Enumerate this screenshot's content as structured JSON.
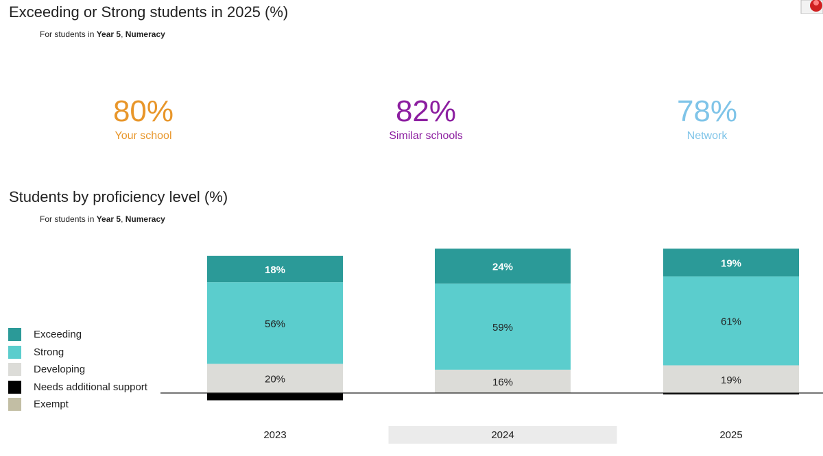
{
  "kpi_section": {
    "title": "Exceeding or Strong students in 2025 (%)",
    "subtitle_prefix": "For students in ",
    "subtitle_year": "Year 5",
    "subtitle_sep": ", ",
    "subtitle_domain": "Numeracy",
    "kpis": [
      {
        "value": "80%",
        "label": "Your school",
        "color": "#e8962a"
      },
      {
        "value": "82%",
        "label": "Similar schools",
        "color": "#8c1ea0"
      },
      {
        "value": "78%",
        "label": "Network",
        "color": "#7fc4e8"
      }
    ]
  },
  "chart_section": {
    "title": "Students by proficiency level (%)",
    "subtitle_prefix": "For students in ",
    "subtitle_year": "Year 5",
    "subtitle_sep": ", ",
    "subtitle_domain": "Numeracy"
  },
  "legend": [
    {
      "label": "Exceeding",
      "color": "#2b9a98"
    },
    {
      "label": "Strong",
      "color": "#5bcdcd"
    },
    {
      "label": "Developing",
      "color": "#dcdcd8"
    },
    {
      "label": "Needs additional support",
      "color": "#000000"
    },
    {
      "label": "Exempt",
      "color": "#c2bea4"
    }
  ],
  "chart_data": {
    "type": "bar",
    "stacked": true,
    "categories": [
      "2023",
      "2024",
      "2025"
    ],
    "highlighted_category": "2024",
    "series": [
      {
        "name": "Exceeding",
        "values": [
          18,
          24,
          19
        ],
        "labels": [
          "18%",
          "24%",
          "19%"
        ],
        "color": "#2b9a98",
        "label_color": "#ffffff"
      },
      {
        "name": "Strong",
        "values": [
          56,
          59,
          61
        ],
        "labels": [
          "56%",
          "59%",
          "61%"
        ],
        "color": "#5bcdcd",
        "label_color": "#222222"
      },
      {
        "name": "Developing",
        "values": [
          20,
          16,
          19
        ],
        "labels": [
          "20%",
          "16%",
          "19%"
        ],
        "color": "#dcdcd8",
        "label_color": "#222222"
      },
      {
        "name": "Needs additional support",
        "values": [
          5,
          0,
          1
        ],
        "labels": [
          "",
          "",
          ""
        ],
        "color": "#000000",
        "label_color": "#ffffff"
      },
      {
        "name": "Exempt",
        "values": [
          0,
          0,
          0
        ],
        "labels": [
          "",
          "",
          ""
        ],
        "color": "#c2bea4",
        "label_color": "#222222"
      }
    ]
  }
}
